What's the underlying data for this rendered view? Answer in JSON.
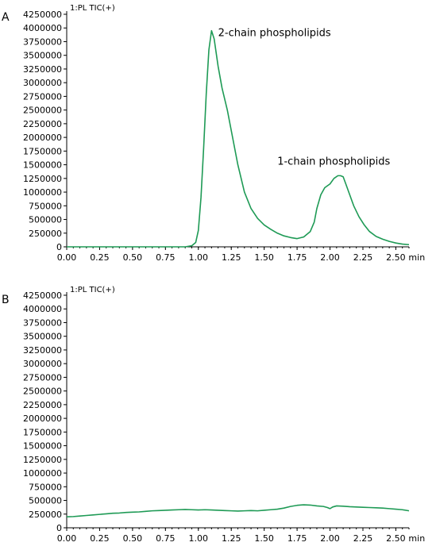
{
  "chart_data": [
    {
      "panel_label": "A",
      "type": "line",
      "title": "1:PL TIC(+)",
      "x_unit": "min",
      "ylim": [
        0,
        4250000
      ],
      "xlim": [
        0,
        2.6
      ],
      "x_ticks": [
        "0.00",
        "0.25",
        "0.50",
        "0.75",
        "1.00",
        "1.25",
        "1.50",
        "1.75",
        "2.00",
        "2.25",
        "2.50"
      ],
      "y_ticks": [
        "0",
        "250000",
        "500000",
        "750000",
        "1000000",
        "1250000",
        "1500000",
        "1750000",
        "2000000",
        "2250000",
        "2500000",
        "2750000",
        "3000000",
        "3250000",
        "3500000",
        "3750000",
        "4000000",
        "4250000"
      ],
      "color": "#1e9a55",
      "annotations": [
        {
          "text": "2-chain phospholipids",
          "x": 1.15,
          "y": 3850000
        },
        {
          "text": "1-chain phospholipids",
          "x": 1.6,
          "y": 1500000
        }
      ],
      "series": [
        {
          "x": [
            0.0,
            0.5,
            0.9,
            0.95,
            0.98,
            1.0,
            1.02,
            1.04,
            1.06,
            1.08,
            1.1,
            1.12,
            1.15,
            1.18,
            1.22,
            1.26,
            1.3,
            1.35,
            1.4,
            1.45,
            1.5,
            1.55,
            1.6,
            1.65,
            1.7,
            1.75,
            1.8,
            1.85,
            1.88,
            1.9,
            1.93,
            1.96,
            2.0,
            2.03,
            2.06,
            2.08,
            2.1,
            2.12,
            2.15,
            2.18,
            2.22,
            2.26,
            2.3,
            2.35,
            2.4,
            2.45,
            2.5,
            2.55,
            2.6
          ],
          "y": [
            0,
            0,
            0,
            20000,
            80000,
            300000,
            900000,
            1800000,
            2800000,
            3600000,
            3950000,
            3800000,
            3300000,
            2900000,
            2500000,
            2000000,
            1500000,
            1000000,
            700000,
            520000,
            400000,
            320000,
            250000,
            200000,
            170000,
            150000,
            180000,
            280000,
            450000,
            700000,
            950000,
            1080000,
            1150000,
            1250000,
            1300000,
            1300000,
            1280000,
            1150000,
            950000,
            750000,
            550000,
            400000,
            280000,
            190000,
            140000,
            100000,
            70000,
            50000,
            40000
          ]
        }
      ]
    },
    {
      "panel_label": "B",
      "type": "line",
      "title": "1:PL TIC(+)",
      "x_unit": "min",
      "ylim": [
        0,
        4250000
      ],
      "xlim": [
        0,
        2.6
      ],
      "x_ticks": [
        "0.00",
        "0.25",
        "0.50",
        "0.75",
        "1.00",
        "1.25",
        "1.50",
        "1.75",
        "2.00",
        "2.25",
        "2.50"
      ],
      "y_ticks": [
        "0",
        "250000",
        "500000",
        "750000",
        "1000000",
        "1250000",
        "1500000",
        "1750000",
        "2000000",
        "2250000",
        "2500000",
        "2750000",
        "3000000",
        "3250000",
        "3500000",
        "3750000",
        "4000000",
        "4250000"
      ],
      "color": "#1e9a55",
      "annotations": [],
      "series": [
        {
          "x": [
            0.0,
            0.05,
            0.1,
            0.15,
            0.2,
            0.25,
            0.3,
            0.35,
            0.4,
            0.45,
            0.5,
            0.55,
            0.6,
            0.65,
            0.7,
            0.75,
            0.8,
            0.85,
            0.9,
            0.95,
            1.0,
            1.05,
            1.1,
            1.15,
            1.2,
            1.25,
            1.3,
            1.35,
            1.4,
            1.45,
            1.5,
            1.55,
            1.6,
            1.65,
            1.7,
            1.75,
            1.8,
            1.85,
            1.9,
            1.95,
            1.98,
            2.0,
            2.02,
            2.05,
            2.1,
            2.15,
            2.2,
            2.25,
            2.3,
            2.35,
            2.4,
            2.45,
            2.5,
            2.55,
            2.6
          ],
          "y": [
            200000,
            205000,
            215000,
            225000,
            235000,
            245000,
            255000,
            265000,
            270000,
            280000,
            285000,
            290000,
            300000,
            310000,
            315000,
            320000,
            325000,
            330000,
            335000,
            330000,
            325000,
            330000,
            325000,
            320000,
            315000,
            310000,
            305000,
            310000,
            315000,
            310000,
            320000,
            330000,
            340000,
            360000,
            390000,
            410000,
            420000,
            415000,
            400000,
            390000,
            370000,
            350000,
            380000,
            400000,
            395000,
            385000,
            380000,
            375000,
            370000,
            365000,
            360000,
            350000,
            340000,
            330000,
            310000
          ]
        }
      ]
    }
  ]
}
